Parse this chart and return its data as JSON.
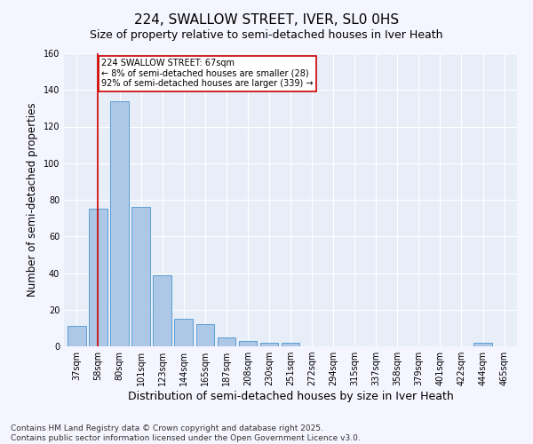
{
  "title": "224, SWALLOW STREET, IVER, SL0 0HS",
  "subtitle": "Size of property relative to semi-detached houses in Iver Heath",
  "xlabel": "Distribution of semi-detached houses by size in Iver Heath",
  "ylabel": "Number of semi-detached properties",
  "categories": [
    "37sqm",
    "58sqm",
    "80sqm",
    "101sqm",
    "123sqm",
    "144sqm",
    "165sqm",
    "187sqm",
    "208sqm",
    "230sqm",
    "251sqm",
    "272sqm",
    "294sqm",
    "315sqm",
    "337sqm",
    "358sqm",
    "379sqm",
    "401sqm",
    "422sqm",
    "444sqm",
    "465sqm"
  ],
  "values": [
    11,
    75,
    134,
    76,
    39,
    15,
    12,
    5,
    3,
    2,
    2,
    0,
    0,
    0,
    0,
    0,
    0,
    0,
    0,
    2,
    0
  ],
  "bar_color": "#adc8e6",
  "bar_edge_color": "#5a9fd4",
  "red_line_x": 1,
  "annotation_text": "224 SWALLOW STREET: 67sqm\n← 8% of semi-detached houses are smaller (28)\n92% of semi-detached houses are larger (339) →",
  "annotation_box_color": "#ffffff",
  "annotation_border_color": "#cc0000",
  "ylim": [
    0,
    160
  ],
  "yticks": [
    0,
    20,
    40,
    60,
    80,
    100,
    120,
    140,
    160
  ],
  "background_color": "#e8eef8",
  "grid_color": "#ffffff",
  "fig_background": "#f5f5ff",
  "footnote": "Contains HM Land Registry data © Crown copyright and database right 2025.\nContains public sector information licensed under the Open Government Licence v3.0.",
  "title_fontsize": 11,
  "subtitle_fontsize": 9,
  "xlabel_fontsize": 9,
  "ylabel_fontsize": 8.5,
  "tick_fontsize": 7,
  "annotation_fontsize": 7,
  "footnote_fontsize": 6.5
}
